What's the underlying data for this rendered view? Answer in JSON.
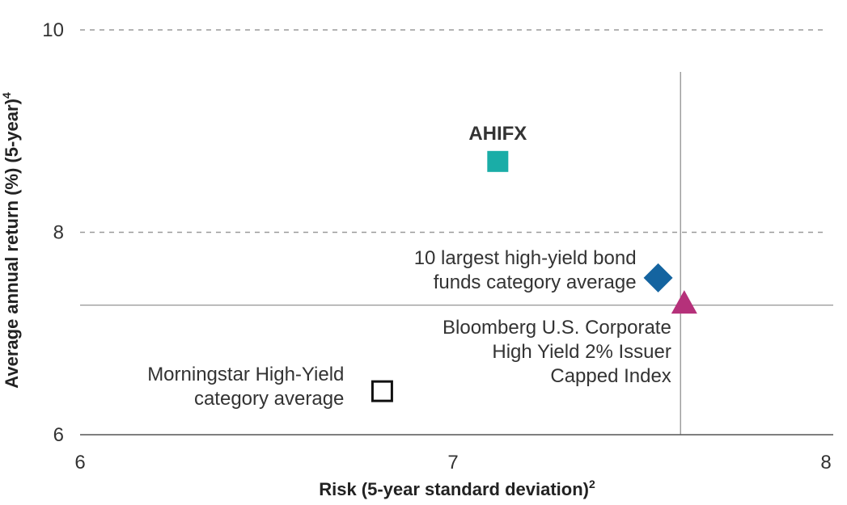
{
  "chart_data": {
    "type": "scatter",
    "xlabel": "Risk (5-year standard deviation)",
    "xlabel_sup": "2",
    "ylabel": "Average annual return (%) (5-year)",
    "ylabel_sup": "4",
    "xlim": [
      6,
      8
    ],
    "ylim": [
      6,
      10
    ],
    "x_ticks": [
      "6",
      "7",
      "8"
    ],
    "y_ticks": [
      "6",
      "8",
      "10"
    ],
    "dashed_gridlines_y": [
      8,
      10
    ],
    "reference_lines": {
      "x": 7.61,
      "y": 7.28
    },
    "points": [
      {
        "name": "AHIFX",
        "label_lines": [
          "AHIFX"
        ],
        "x": 7.12,
        "y": 8.7,
        "marker": "square-filled",
        "color": "#1aada7",
        "bold": true
      },
      {
        "name": "10 largest high-yield bond funds category average",
        "label_lines": [
          "10 largest high-yield bond",
          "funds category average"
        ],
        "x": 7.55,
        "y": 7.55,
        "marker": "diamond",
        "color": "#1464a0",
        "bold": false
      },
      {
        "name": "Bloomberg U.S. Corporate High Yield 2% Issuer Capped Index",
        "label_lines": [
          "Bloomberg U.S. Corporate",
          "High Yield 2% Issuer",
          "Capped Index"
        ],
        "x": 7.62,
        "y": 7.3,
        "marker": "triangle",
        "color": "#b5317a",
        "bold": false
      },
      {
        "name": "Morningstar High-Yield category average",
        "label_lines": [
          "Morningstar High-Yield",
          "category average"
        ],
        "x": 6.81,
        "y": 6.43,
        "marker": "square-open",
        "color": "#111111",
        "bold": false
      }
    ]
  }
}
